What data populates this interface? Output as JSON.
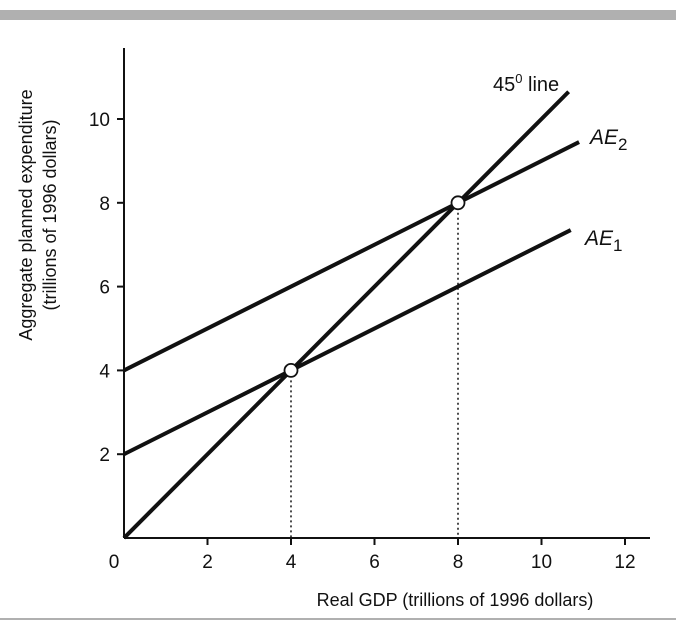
{
  "chart_data": {
    "type": "line",
    "ylabel_line1": "Aggregate planned expenditure",
    "ylabel_line2": "(trillions of 1996 dollars)",
    "xlabel": "Real GDP (trillions of 1996 dollars)",
    "xlim": [
      0,
      12.5
    ],
    "ylim": [
      0,
      11.8
    ],
    "x_ticks": [
      0,
      2,
      4,
      6,
      8,
      10,
      12
    ],
    "y_ticks": [
      2,
      4,
      6,
      8,
      10
    ],
    "series": [
      {
        "name": "45° line",
        "label_main": "45",
        "label_sup": "0",
        "label_rest": " line",
        "x": [
          0,
          10.65
        ],
        "y": [
          0,
          10.65
        ]
      },
      {
        "name": "AE2",
        "label_main": "AE",
        "label_sub": "2",
        "x": [
          0,
          10.9
        ],
        "y": [
          4,
          9.45
        ]
      },
      {
        "name": "AE1",
        "label_main": "AE",
        "label_sub": "1",
        "x": [
          0,
          10.7
        ],
        "y": [
          2,
          7.35
        ]
      }
    ],
    "equilibria": [
      {
        "x": 4,
        "y": 4
      },
      {
        "x": 8,
        "y": 8
      }
    ],
    "grid": false,
    "colors": {
      "line": "#111111",
      "background": "#ffffff",
      "rule": "#b0b0b0"
    }
  }
}
